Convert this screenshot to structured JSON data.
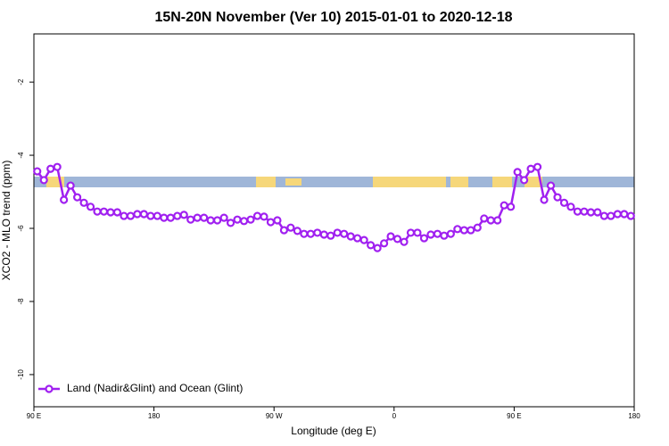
{
  "chart_data": {
    "type": "line",
    "title": "15N-20N November (Ver 10)   2015-01-01 to 2020-12-18",
    "x_label": "Longitude (deg E)",
    "y_label": "XCO2 - MLO trend (ppm)",
    "xlim": [
      90,
      540
    ],
    "xticks": [
      {
        "value": 90,
        "label": "90 E"
      },
      180,
      {
        "value": 270,
        "label": "90 W"
      },
      {
        "value": 360,
        "label": "0"
      },
      {
        "value": 450,
        "label": "90 E"
      },
      {
        "value": 540,
        "label": "180"
      }
    ],
    "ylim": [
      -10.88,
      -0.68
    ],
    "yticks": [
      -2,
      -4,
      -6,
      -8,
      -10
    ],
    "legend": "bottom-left",
    "x": [
      92.5,
      97.5,
      102.5,
      107.5,
      112.5,
      117.5,
      122.5,
      127.5,
      132.5,
      137.5,
      142.5,
      147.5,
      152.5,
      157.5,
      162.5,
      167.5,
      172.5,
      177.5,
      182.5,
      187.5,
      192.5,
      197.5,
      202.5,
      207.5,
      212.5,
      217.5,
      222.5,
      227.5,
      232.5,
      237.5,
      242.5,
      247.5,
      252.5,
      257.5,
      262.5,
      267.5,
      272.5,
      277.5,
      282.5,
      287.5,
      292.5,
      297.5,
      302.5,
      307.5,
      312.5,
      317.5,
      322.5,
      327.5,
      332.5,
      337.5,
      342.5,
      347.5,
      352.5,
      357.5,
      362.5,
      367.5,
      372.5,
      377.5,
      382.5,
      387.5,
      392.5,
      397.5,
      402.5,
      407.5,
      412.5,
      417.5,
      422.5,
      427.5,
      432.5,
      437.5,
      442.5,
      447.5,
      452.5,
      457.5,
      462.5,
      467.5,
      472.5,
      477.5,
      482.5,
      487.5,
      492.5,
      497.5,
      502.5,
      507.5,
      512.5,
      517.5,
      522.5,
      527.5,
      532.5,
      537.5
    ],
    "series": [
      {
        "name": "Land (Nadir&Glint) and Ocean (Glint)",
        "color": "#a020f0",
        "values": [
          -4.44,
          -4.68,
          -4.37,
          -4.32,
          -5.22,
          -4.83,
          -5.15,
          -5.3,
          -5.41,
          -5.54,
          -5.54,
          -5.56,
          -5.56,
          -5.66,
          -5.66,
          -5.61,
          -5.61,
          -5.66,
          -5.66,
          -5.71,
          -5.71,
          -5.66,
          -5.63,
          -5.76,
          -5.71,
          -5.71,
          -5.78,
          -5.78,
          -5.71,
          -5.85,
          -5.76,
          -5.8,
          -5.76,
          -5.66,
          -5.68,
          -5.83,
          -5.78,
          -6.05,
          -5.98,
          -6.07,
          -6.15,
          -6.15,
          -6.12,
          -6.17,
          -6.2,
          -6.12,
          -6.15,
          -6.22,
          -6.27,
          -6.32,
          -6.46,
          -6.54,
          -6.41,
          -6.22,
          -6.29,
          -6.37,
          -6.12,
          -6.12,
          -6.27,
          -6.17,
          -6.15,
          -6.2,
          -6.15,
          -6.02,
          -6.05,
          -6.05,
          -5.98,
          -5.73,
          -5.78,
          -5.78,
          -5.37,
          -5.41,
          -4.46,
          -4.68,
          -4.37,
          -4.32,
          -5.22,
          -4.83,
          -5.15,
          -5.3,
          -5.41,
          -5.54,
          -5.54,
          -5.56,
          -5.56,
          -5.66,
          -5.66,
          -5.61,
          -5.61,
          -5.66
        ]
      }
    ]
  }
}
